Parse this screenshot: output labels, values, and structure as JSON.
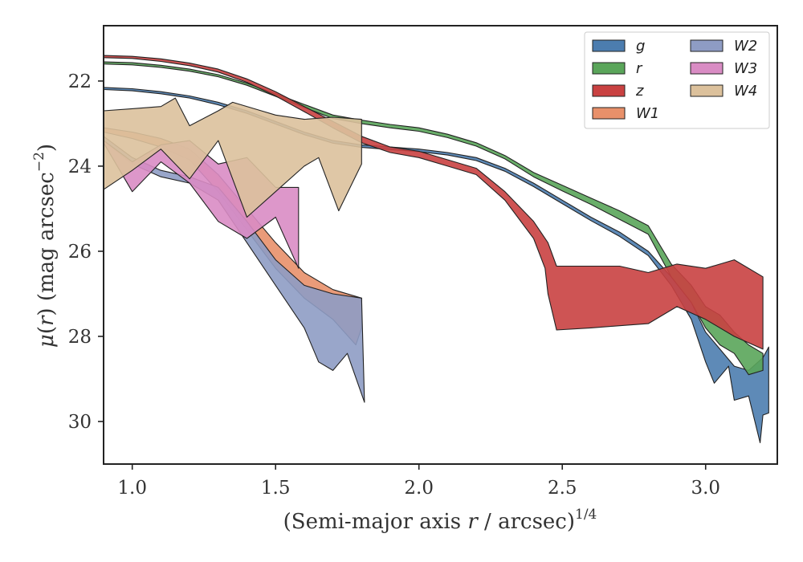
{
  "chart_data": {
    "type": "area",
    "title": "",
    "xlabel": "(Semi-major axis r / arcsec)",
    "xlabel_main": "(Semi-major axis ",
    "xlabel_var": "r",
    "xlabel_rest": " / arcsec)",
    "xlabel_exp": "1/4",
    "ylabel_mu": "μ",
    "ylabel_paren_open": "(",
    "ylabel_var": "r",
    "ylabel_mid": ") (mag arcsec",
    "ylabel_exp": "−2",
    "ylabel_close": ")",
    "xlim": [
      0.9,
      3.25
    ],
    "ylim": [
      31.0,
      20.7
    ],
    "y_inverted": true,
    "xticks": [
      1.0,
      1.5,
      2.0,
      2.5,
      3.0
    ],
    "xtick_labels": [
      "1.0",
      "1.5",
      "2.0",
      "2.5",
      "3.0"
    ],
    "yticks": [
      22,
      24,
      26,
      28,
      30
    ],
    "ytick_labels": [
      "22",
      "24",
      "26",
      "28",
      "30"
    ],
    "grid": false,
    "legend_position": "top-right",
    "legend_columns": 2,
    "series": [
      {
        "name": "g",
        "color": "#4c7daf",
        "upper": [
          [
            0.9,
            22.15
          ],
          [
            1.0,
            22.18
          ],
          [
            1.1,
            22.25
          ],
          [
            1.2,
            22.35
          ],
          [
            1.3,
            22.5
          ],
          [
            1.4,
            22.7
          ],
          [
            1.5,
            22.95
          ],
          [
            1.6,
            23.2
          ],
          [
            1.7,
            23.4
          ],
          [
            1.8,
            23.5
          ],
          [
            1.9,
            23.55
          ],
          [
            2.0,
            23.6
          ],
          [
            2.1,
            23.68
          ],
          [
            2.2,
            23.8
          ],
          [
            2.3,
            24.05
          ],
          [
            2.4,
            24.4
          ],
          [
            2.5,
            24.8
          ],
          [
            2.6,
            25.2
          ],
          [
            2.7,
            25.55
          ],
          [
            2.8,
            26.0
          ],
          [
            2.88,
            26.6
          ],
          [
            2.95,
            27.2
          ],
          [
            3.0,
            27.9
          ],
          [
            3.05,
            28.3
          ],
          [
            3.1,
            28.7
          ],
          [
            3.15,
            28.8
          ],
          [
            3.2,
            28.5
          ],
          [
            3.22,
            28.25
          ]
        ],
        "lower": [
          [
            0.9,
            22.2
          ],
          [
            1.0,
            22.23
          ],
          [
            1.1,
            22.3
          ],
          [
            1.2,
            22.4
          ],
          [
            1.3,
            22.56
          ],
          [
            1.4,
            22.76
          ],
          [
            1.5,
            23.01
          ],
          [
            1.6,
            23.26
          ],
          [
            1.7,
            23.46
          ],
          [
            1.8,
            23.56
          ],
          [
            1.9,
            23.61
          ],
          [
            2.0,
            23.66
          ],
          [
            2.1,
            23.74
          ],
          [
            2.2,
            23.87
          ],
          [
            2.3,
            24.12
          ],
          [
            2.4,
            24.48
          ],
          [
            2.5,
            24.88
          ],
          [
            2.6,
            25.28
          ],
          [
            2.7,
            25.65
          ],
          [
            2.8,
            26.1
          ],
          [
            2.88,
            26.8
          ],
          [
            2.95,
            27.6
          ],
          [
            3.0,
            28.6
          ],
          [
            3.03,
            29.1
          ],
          [
            3.08,
            28.7
          ],
          [
            3.1,
            29.5
          ],
          [
            3.15,
            29.4
          ],
          [
            3.19,
            30.5
          ],
          [
            3.2,
            29.85
          ],
          [
            3.22,
            29.8
          ]
        ]
      },
      {
        "name": "r",
        "color": "#5aa55a",
        "upper": [
          [
            0.9,
            21.55
          ],
          [
            1.0,
            21.57
          ],
          [
            1.1,
            21.63
          ],
          [
            1.2,
            21.72
          ],
          [
            1.3,
            21.85
          ],
          [
            1.4,
            22.05
          ],
          [
            1.5,
            22.3
          ],
          [
            1.6,
            22.55
          ],
          [
            1.7,
            22.8
          ],
          [
            1.8,
            22.92
          ],
          [
            1.9,
            23.02
          ],
          [
            2.0,
            23.1
          ],
          [
            2.1,
            23.25
          ],
          [
            2.2,
            23.45
          ],
          [
            2.3,
            23.75
          ],
          [
            2.4,
            24.15
          ],
          [
            2.5,
            24.45
          ],
          [
            2.6,
            24.75
          ],
          [
            2.7,
            25.05
          ],
          [
            2.8,
            25.4
          ],
          [
            2.88,
            26.3
          ],
          [
            2.95,
            26.8
          ],
          [
            3.0,
            27.3
          ],
          [
            3.05,
            27.5
          ],
          [
            3.1,
            27.9
          ],
          [
            3.15,
            28.2
          ],
          [
            3.2,
            28.4
          ]
        ],
        "lower": [
          [
            0.9,
            21.6
          ],
          [
            1.0,
            21.62
          ],
          [
            1.1,
            21.68
          ],
          [
            1.2,
            21.77
          ],
          [
            1.3,
            21.9
          ],
          [
            1.4,
            22.1
          ],
          [
            1.5,
            22.36
          ],
          [
            1.6,
            22.62
          ],
          [
            1.7,
            22.88
          ],
          [
            1.8,
            23.0
          ],
          [
            1.9,
            23.1
          ],
          [
            2.0,
            23.18
          ],
          [
            2.1,
            23.33
          ],
          [
            2.2,
            23.53
          ],
          [
            2.3,
            23.83
          ],
          [
            2.4,
            24.25
          ],
          [
            2.5,
            24.58
          ],
          [
            2.6,
            24.9
          ],
          [
            2.7,
            25.25
          ],
          [
            2.8,
            25.6
          ],
          [
            2.88,
            26.6
          ],
          [
            2.95,
            27.2
          ],
          [
            3.0,
            27.8
          ],
          [
            3.05,
            28.2
          ],
          [
            3.1,
            28.4
          ],
          [
            3.15,
            28.9
          ],
          [
            3.2,
            28.8
          ]
        ]
      },
      {
        "name": "z",
        "color": "#c94141",
        "upper": [
          [
            0.9,
            21.4
          ],
          [
            1.0,
            21.42
          ],
          [
            1.1,
            21.48
          ],
          [
            1.2,
            21.58
          ],
          [
            1.3,
            21.72
          ],
          [
            1.4,
            21.95
          ],
          [
            1.5,
            22.25
          ],
          [
            1.6,
            22.6
          ],
          [
            1.7,
            22.95
          ],
          [
            1.8,
            23.3
          ],
          [
            1.9,
            23.55
          ],
          [
            2.0,
            23.65
          ],
          [
            2.1,
            23.85
          ],
          [
            2.2,
            24.05
          ],
          [
            2.3,
            24.6
          ],
          [
            2.4,
            25.3
          ],
          [
            2.45,
            25.8
          ],
          [
            2.48,
            26.35
          ],
          [
            2.6,
            26.35
          ],
          [
            2.7,
            26.35
          ],
          [
            2.8,
            26.5
          ],
          [
            2.9,
            26.3
          ],
          [
            3.0,
            26.4
          ],
          [
            3.1,
            26.2
          ],
          [
            3.2,
            26.6
          ]
        ],
        "lower": [
          [
            0.9,
            21.45
          ],
          [
            1.0,
            21.47
          ],
          [
            1.1,
            21.54
          ],
          [
            1.2,
            21.64
          ],
          [
            1.3,
            21.79
          ],
          [
            1.4,
            22.03
          ],
          [
            1.5,
            22.35
          ],
          [
            1.6,
            22.72
          ],
          [
            1.7,
            23.1
          ],
          [
            1.8,
            23.45
          ],
          [
            1.9,
            23.68
          ],
          [
            2.0,
            23.8
          ],
          [
            2.1,
            24.0
          ],
          [
            2.2,
            24.2
          ],
          [
            2.3,
            24.8
          ],
          [
            2.4,
            25.7
          ],
          [
            2.44,
            26.4
          ],
          [
            2.45,
            27.0
          ],
          [
            2.48,
            27.85
          ],
          [
            2.6,
            27.8
          ],
          [
            2.7,
            27.75
          ],
          [
            2.8,
            27.7
          ],
          [
            2.9,
            27.3
          ],
          [
            3.0,
            27.6
          ],
          [
            3.1,
            28.0
          ],
          [
            3.2,
            28.3
          ]
        ]
      },
      {
        "name": "W1",
        "color": "#e8906a",
        "upper": [
          [
            0.9,
            23.1
          ],
          [
            1.0,
            23.2
          ],
          [
            1.1,
            23.35
          ],
          [
            1.2,
            23.6
          ],
          [
            1.3,
            24.2
          ],
          [
            1.4,
            25.0
          ],
          [
            1.5,
            25.8
          ],
          [
            1.6,
            26.5
          ],
          [
            1.7,
            26.9
          ],
          [
            1.8,
            27.1
          ]
        ],
        "lower": [
          [
            0.9,
            23.2
          ],
          [
            1.0,
            23.35
          ],
          [
            1.1,
            23.55
          ],
          [
            1.2,
            23.85
          ],
          [
            1.3,
            24.6
          ],
          [
            1.4,
            25.5
          ],
          [
            1.5,
            26.4
          ],
          [
            1.6,
            27.1
          ],
          [
            1.7,
            27.6
          ],
          [
            1.78,
            28.2
          ],
          [
            1.8,
            27.8
          ]
        ]
      },
      {
        "name": "W2",
        "color": "#8e9cc4",
        "upper": [
          [
            0.9,
            23.3
          ],
          [
            1.0,
            23.8
          ],
          [
            1.1,
            24.1
          ],
          [
            1.2,
            24.25
          ],
          [
            1.3,
            24.5
          ],
          [
            1.4,
            25.3
          ],
          [
            1.5,
            26.2
          ],
          [
            1.6,
            26.8
          ],
          [
            1.7,
            27.0
          ],
          [
            1.8,
            27.1
          ]
        ],
        "lower": [
          [
            0.9,
            23.4
          ],
          [
            1.0,
            23.95
          ],
          [
            1.1,
            24.25
          ],
          [
            1.2,
            24.4
          ],
          [
            1.3,
            24.8
          ],
          [
            1.4,
            25.8
          ],
          [
            1.5,
            26.8
          ],
          [
            1.6,
            27.8
          ],
          [
            1.65,
            28.6
          ],
          [
            1.7,
            28.8
          ],
          [
            1.75,
            28.4
          ],
          [
            1.81,
            29.55
          ]
        ]
      },
      {
        "name": "W3",
        "color": "#d98cc4",
        "upper": [
          [
            0.9,
            23.4
          ],
          [
            1.0,
            23.9
          ],
          [
            1.1,
            23.5
          ],
          [
            1.2,
            23.4
          ],
          [
            1.3,
            23.95
          ],
          [
            1.4,
            23.8
          ],
          [
            1.5,
            24.5
          ],
          [
            1.58,
            24.5
          ]
        ],
        "lower": [
          [
            0.9,
            23.45
          ],
          [
            1.0,
            24.6
          ],
          [
            1.1,
            23.9
          ],
          [
            1.2,
            24.4
          ],
          [
            1.3,
            25.3
          ],
          [
            1.4,
            25.7
          ],
          [
            1.5,
            25.2
          ],
          [
            1.58,
            26.4
          ]
        ]
      },
      {
        "name": "W4",
        "color": "#dcc19c",
        "upper": [
          [
            0.9,
            22.7
          ],
          [
            1.0,
            22.65
          ],
          [
            1.1,
            22.6
          ],
          [
            1.15,
            22.4
          ],
          [
            1.2,
            23.05
          ],
          [
            1.3,
            22.7
          ],
          [
            1.35,
            22.5
          ],
          [
            1.45,
            22.7
          ],
          [
            1.5,
            22.8
          ],
          [
            1.6,
            22.9
          ],
          [
            1.7,
            22.85
          ],
          [
            1.8,
            22.9
          ]
        ],
        "lower": [
          [
            0.9,
            24.55
          ],
          [
            1.0,
            24.1
          ],
          [
            1.1,
            23.6
          ],
          [
            1.2,
            24.3
          ],
          [
            1.3,
            23.4
          ],
          [
            1.4,
            25.2
          ],
          [
            1.5,
            24.6
          ],
          [
            1.6,
            24.0
          ],
          [
            1.65,
            23.8
          ],
          [
            1.72,
            25.05
          ],
          [
            1.8,
            23.95
          ]
        ]
      }
    ]
  }
}
